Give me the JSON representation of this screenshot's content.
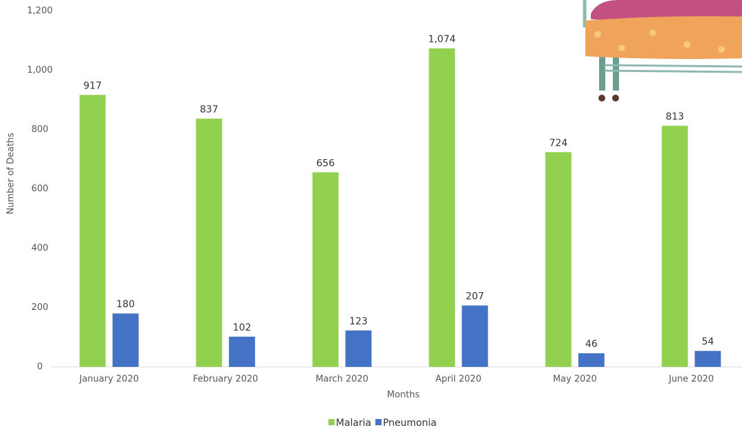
{
  "chart_data": {
    "type": "bar",
    "categories": [
      "January 2020",
      "February 2020",
      "March 2020",
      "April 2020",
      "May 2020",
      "June 2020"
    ],
    "series": [
      {
        "name": "Malaria",
        "color": "#92d050",
        "values": [
          917,
          837,
          656,
          1074,
          724,
          813
        ],
        "value_labels": [
          "917",
          "837",
          "656",
          "1,074",
          "724",
          "813"
        ]
      },
      {
        "name": "Pneumonia",
        "color": "#4472c4",
        "values": [
          180,
          102,
          123,
          207,
          46,
          54
        ]
      }
    ],
    "ylim": [
      0,
      1200
    ],
    "yticks": [
      0,
      200,
      400,
      600,
      800,
      {
        "value": 1000,
        "label": "1,000"
      },
      {
        "value": 1200,
        "label": "1,200"
      }
    ],
    "y_label": "Number of Deaths",
    "x_label": "Months",
    "grid": false,
    "legend": "bottom"
  }
}
